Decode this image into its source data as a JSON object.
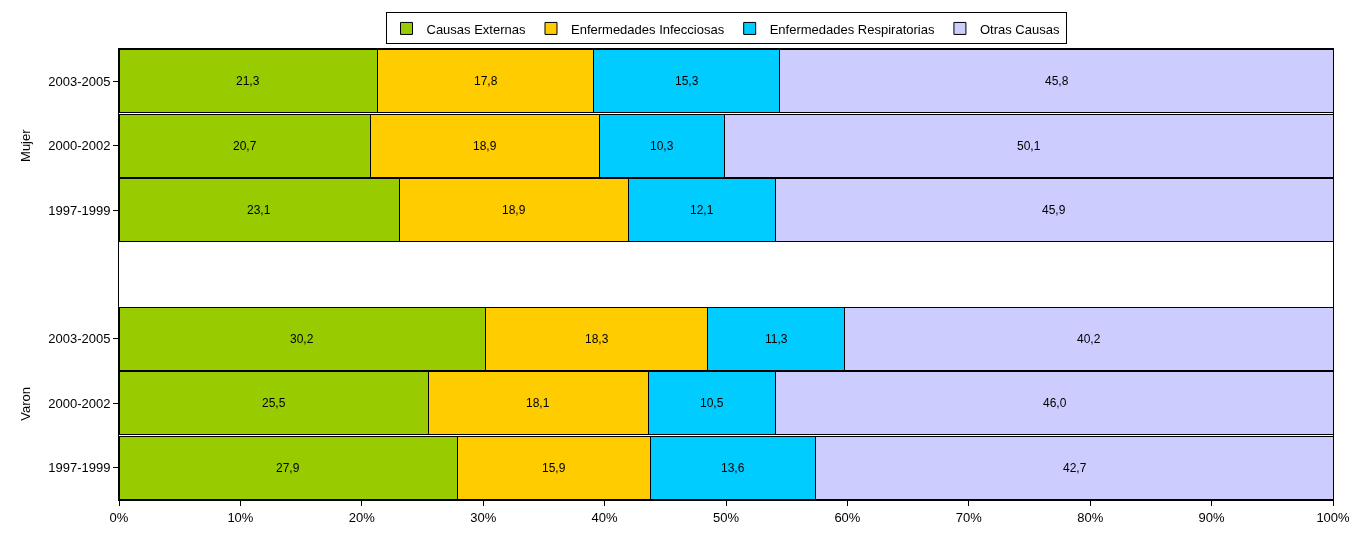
{
  "chart_data": {
    "type": "bar",
    "orientation": "horizontal",
    "stacked": true,
    "categories": [
      "2003-2005",
      "2000-2002",
      "1997-1999",
      null,
      "2003-2005",
      "2000-2002",
      "1997-1999"
    ],
    "series": [
      {
        "name": "Causas Externas",
        "color": "#99cc00",
        "values": [
          21.3,
          20.7,
          23.1,
          null,
          30.2,
          25.5,
          27.9
        ],
        "value_labels": [
          "21,3",
          "20,7",
          "23,1",
          null,
          "30,2",
          "25,5",
          "27,9"
        ]
      },
      {
        "name": "Enfermedades Infecciosas",
        "color": "#ffcc00",
        "values": [
          17.8,
          18.9,
          18.9,
          null,
          18.3,
          18.1,
          15.9
        ],
        "value_labels": [
          "17,8",
          "18,9",
          "18,9",
          null,
          "18,3",
          "18,1",
          "15,9"
        ]
      },
      {
        "name": "Enfermedades Respiratorias",
        "color": "#00ccff",
        "values": [
          15.3,
          10.3,
          12.1,
          null,
          11.3,
          10.5,
          13.6
        ],
        "value_labels": [
          "15,3",
          "10,3",
          "12,1",
          null,
          "11,3",
          "10,5",
          "13,6"
        ]
      },
      {
        "name": "Otras Causas",
        "color": "#ccccff",
        "values": [
          45.8,
          50.1,
          45.9,
          null,
          40.2,
          46.0,
          42.7
        ],
        "value_labels": [
          "45,8",
          "50,1",
          "45,9",
          null,
          "40,2",
          "46,0",
          "42,7"
        ]
      }
    ],
    "annotations": [
      "Mujer",
      "Varon"
    ],
    "xlim": [
      0,
      100
    ],
    "xticks": [
      {
        "value": 0,
        "label": "0%"
      },
      {
        "value": 10,
        "label": "10%"
      },
      {
        "value": 20,
        "label": "20%"
      },
      {
        "value": 30,
        "label": "30%"
      },
      {
        "value": 40,
        "label": "40%"
      },
      {
        "value": 50,
        "label": "50%"
      },
      {
        "value": 60,
        "label": "60%"
      },
      {
        "value": 70,
        "label": "70%"
      },
      {
        "value": 80,
        "label": "80%"
      },
      {
        "value": 90,
        "label": "90%"
      },
      {
        "value": 100,
        "label": "100%"
      }
    ],
    "grid": false,
    "legend": "top"
  }
}
